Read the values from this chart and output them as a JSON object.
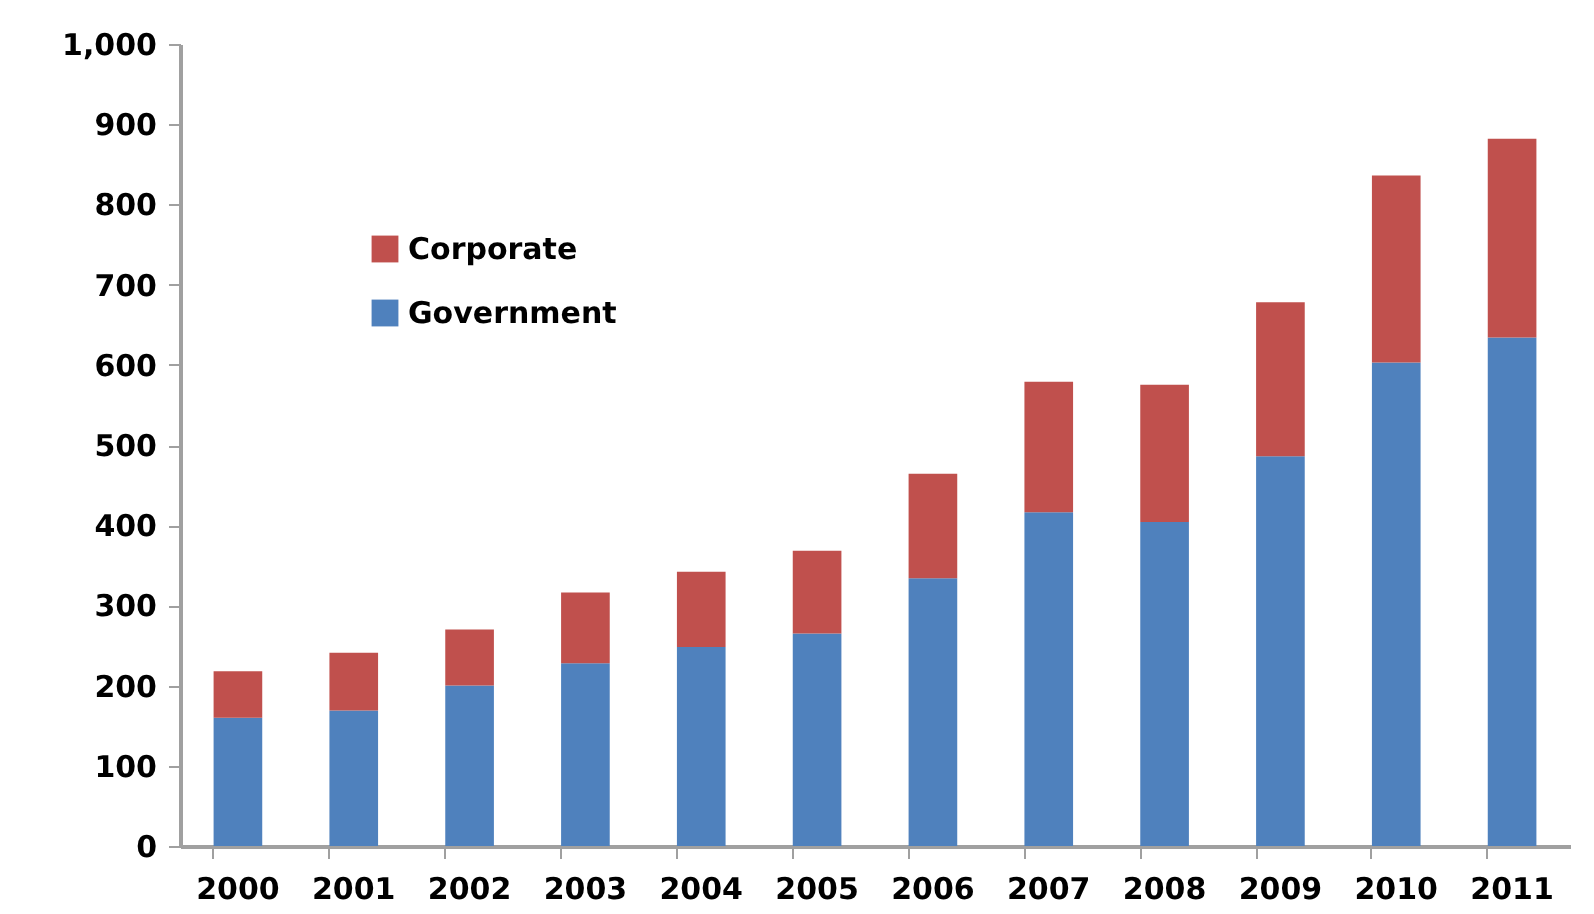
{
  "chart_data": {
    "type": "bar",
    "stacked": true,
    "categories": [
      "2000",
      "2001",
      "2002",
      "2003",
      "2004",
      "2005",
      "2006",
      "2007",
      "2008",
      "2009",
      "2010",
      "2011"
    ],
    "series": [
      {
        "name": "Government",
        "color": "#4f81bd",
        "values": [
          160,
          169,
          200,
          228,
          248,
          265,
          334,
          416,
          404,
          486,
          603,
          634
        ]
      },
      {
        "name": "Corporate",
        "color": "#c0504d",
        "values": [
          58,
          72,
          70,
          88,
          94,
          103,
          130,
          163,
          171,
          192,
          233,
          248
        ]
      }
    ],
    "ylim": [
      0,
      1000
    ],
    "yticks": [
      0,
      100,
      200,
      300,
      400,
      500,
      600,
      700,
      800,
      900,
      {
        "value": 1000,
        "label": "1,000"
      }
    ],
    "grid": false,
    "legend": "top left"
  }
}
